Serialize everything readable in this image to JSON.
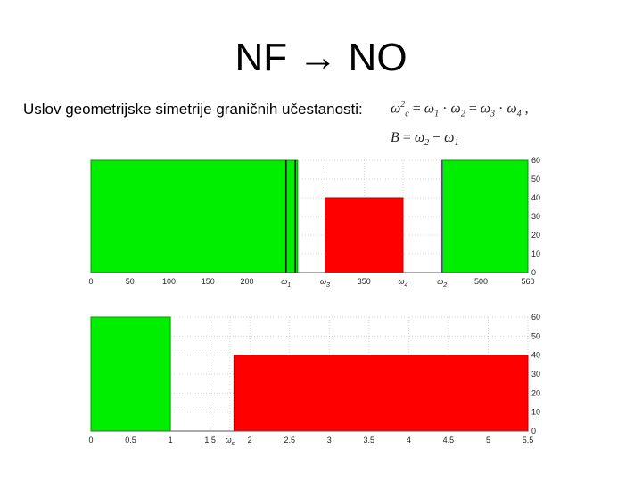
{
  "slide": {
    "title": "NF → NO",
    "condition_label": "Uslov geometrijske simetrije graničnih učestanosti:"
  },
  "formulas": {
    "symmetry": {
      "lhs": "ω",
      "lhs_sub": "c",
      "lhs_sup": "2",
      "eq1": " = ",
      "t1": "ω",
      "t1_sub": "1",
      "dot1": " · ",
      "t2": "ω",
      "t2_sub": "2",
      "eq2": " = ",
      "t3": "ω",
      "t3_sub": "3",
      "dot2": " · ",
      "t4": "ω",
      "t4_sub": "4",
      "tail": " ,"
    },
    "bandwidth": {
      "lhs": "B",
      "eq": " = ",
      "t1": "ω",
      "t1_sub": "2",
      "minus": " − ",
      "t2": "ω",
      "t2_sub": "1"
    }
  },
  "colors": {
    "pass": "#00ee00",
    "stop": "#ff0000",
    "grid": "#c8c8c8"
  },
  "chart_data": [
    {
      "type": "area",
      "xlim": [
        0,
        560
      ],
      "ylim": [
        0,
        60
      ],
      "yticks": [
        0,
        10,
        20,
        30,
        40,
        50,
        60
      ],
      "x_ticks": [
        {
          "x": 0,
          "label": "0",
          "sub": ""
        },
        {
          "x": 50,
          "label": "50",
          "sub": ""
        },
        {
          "x": 100,
          "label": "100",
          "sub": ""
        },
        {
          "x": 150,
          "label": "150",
          "sub": ""
        },
        {
          "x": 200,
          "label": "200",
          "sub": ""
        },
        {
          "x": 250,
          "label": "ω",
          "sub": "1"
        },
        {
          "x": 300,
          "label": "ω",
          "sub": "3"
        },
        {
          "x": 350,
          "label": "350",
          "sub": ""
        },
        {
          "x": 400,
          "label": "ω",
          "sub": "4"
        },
        {
          "x": 450,
          "label": "ω",
          "sub": "2"
        },
        {
          "x": 500,
          "label": "500",
          "sub": ""
        },
        {
          "x": 560,
          "label": "560",
          "sub": ""
        }
      ],
      "regions": [
        {
          "kind": "pass",
          "x0": 0,
          "x1": 265,
          "value": 60
        },
        {
          "kind": "stop",
          "x0": 300,
          "x1": 400,
          "value": 40
        },
        {
          "kind": "pass",
          "x0": 450,
          "x1": 560,
          "value": 60
        }
      ],
      "markers": [
        {
          "x": 250,
          "color": "#111111"
        },
        {
          "x": 262,
          "color": "#111111"
        },
        {
          "x": 450,
          "color": "#6a2cc8"
        }
      ],
      "grid": true
    },
    {
      "type": "area",
      "xlim": [
        0,
        5.5
      ],
      "ylim": [
        0,
        60
      ],
      "yticks": [
        0,
        10,
        20,
        30,
        40,
        50,
        60
      ],
      "x_ticks": [
        {
          "x": 0,
          "label": "0",
          "sub": ""
        },
        {
          "x": 0.5,
          "label": "0.5",
          "sub": ""
        },
        {
          "x": 1,
          "label": "1",
          "sub": ""
        },
        {
          "x": 1.5,
          "label": "1.5",
          "sub": ""
        },
        {
          "x": 1.75,
          "label": "ω",
          "sub": "s"
        },
        {
          "x": 2,
          "label": "2",
          "sub": ""
        },
        {
          "x": 2.5,
          "label": "2.5",
          "sub": ""
        },
        {
          "x": 3,
          "label": "3",
          "sub": ""
        },
        {
          "x": 3.5,
          "label": "3.5",
          "sub": ""
        },
        {
          "x": 4,
          "label": "4",
          "sub": ""
        },
        {
          "x": 4.5,
          "label": "4.5",
          "sub": ""
        },
        {
          "x": 5,
          "label": "5",
          "sub": ""
        },
        {
          "x": 5.5,
          "label": "5.5",
          "sub": ""
        }
      ],
      "regions": [
        {
          "kind": "pass",
          "x0": 0,
          "x1": 1,
          "value": 60
        },
        {
          "kind": "stop",
          "x0": 1.8,
          "x1": 5.5,
          "value": 40
        }
      ],
      "markers": [],
      "grid": true
    }
  ]
}
